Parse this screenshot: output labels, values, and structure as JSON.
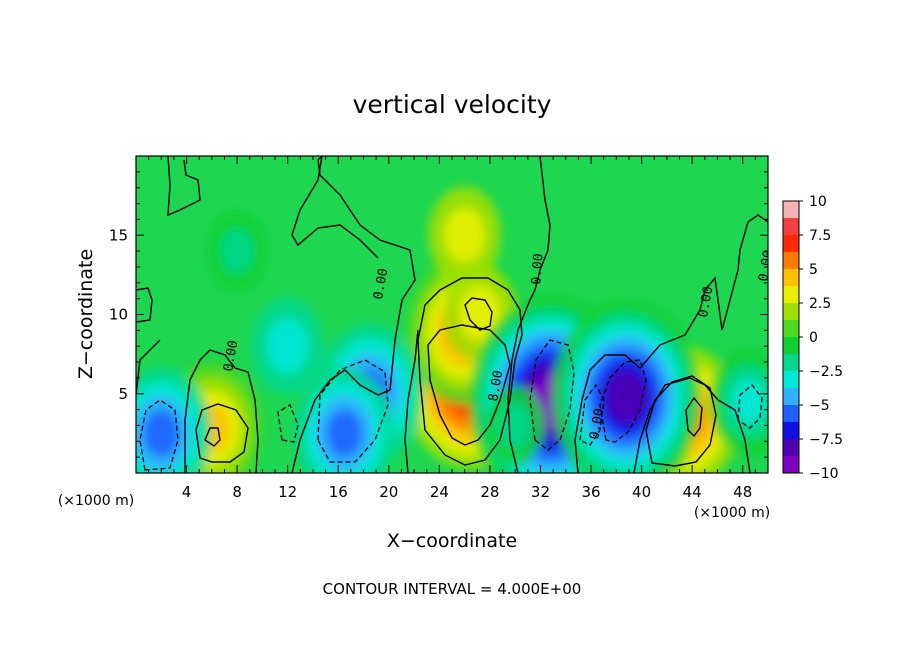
{
  "chart_data": {
    "type": "heatmap",
    "title": "vertical velocity",
    "xlabel": "X−coordinate",
    "ylabel": "Z−coordinate",
    "xunit_left": "(×1000 m)",
    "xunit_right": "(×1000 m)",
    "footer": "CONTOUR INTERVAL = 4.000E+00",
    "xlim": [
      0,
      50
    ],
    "ylim": [
      0,
      20
    ],
    "xticks": [
      "4",
      "8",
      "12",
      "16",
      "20",
      "24",
      "28",
      "32",
      "36",
      "40",
      "44",
      "48"
    ],
    "yticks": [
      "5",
      "10",
      "15"
    ],
    "colorbar": {
      "min": -10,
      "max": 10,
      "labels": [
        "10",
        "7.5",
        "5",
        "2.5",
        "0",
        "−2.5",
        "−5",
        "−7.5",
        "−10"
      ],
      "colors": [
        "#f6b3b3",
        "#f04040",
        "#ff2a00",
        "#ff7a00",
        "#ffc000",
        "#e8f000",
        "#a0e000",
        "#50d820",
        "#10d030",
        "#00d890",
        "#00e8d8",
        "#30b0ff",
        "#2060ff",
        "#1010e0",
        "#5000b0",
        "#8000c0"
      ]
    },
    "contour_labels": [
      "0.00",
      "0.00",
      "0.00",
      "0.00",
      "0.00",
      "0.00",
      "0.00",
      "8.00"
    ],
    "features": [
      {
        "x": 26.5,
        "z": 6.0,
        "w": 7.9
      },
      {
        "x": 26.0,
        "z": 9.0,
        "w": 6.0
      },
      {
        "x": 27.2,
        "z": 10.0,
        "w": 3.0
      },
      {
        "x": 6.0,
        "z": 2.8,
        "w": 5.0
      },
      {
        "x": 43.5,
        "z": 3.5,
        "w": 5.5
      },
      {
        "x": 41.0,
        "z": 2.0,
        "w": 3.0
      },
      {
        "x": 36.0,
        "z": 3.0,
        "w": 2.5
      },
      {
        "x": 32.8,
        "z": 4.5,
        "w": -9.5
      },
      {
        "x": 38.8,
        "z": 4.8,
        "w": -8.5
      },
      {
        "x": 2.0,
        "z": 2.5,
        "w": -5.0
      },
      {
        "x": 18.5,
        "z": 5.0,
        "w": -5.5
      },
      {
        "x": 16.5,
        "z": 2.5,
        "w": -5.0
      },
      {
        "x": 48.5,
        "z": 4.5,
        "w": -3.5
      },
      {
        "x": 12.0,
        "z": 8.0,
        "w": -3.0
      },
      {
        "x": 8.0,
        "z": 14.0,
        "w": -2.0
      },
      {
        "x": 30.0,
        "z": 3.0,
        "w": -2.0
      },
      {
        "x": 26.0,
        "z": 15.0,
        "w": 3.0
      }
    ]
  }
}
